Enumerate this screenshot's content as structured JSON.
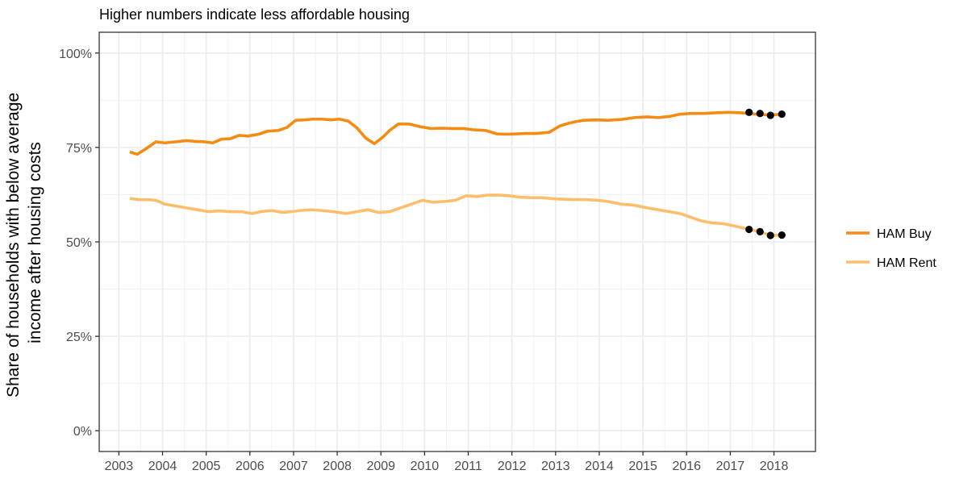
{
  "chart_data": {
    "type": "line",
    "title": "Higher numbers indicate less affordable housing",
    "ylabel_lines": [
      "Share of households with below average",
      "income after housing costs"
    ],
    "xlabel": "",
    "xlim": [
      2002.55,
      2018.95
    ],
    "ylim": [
      -0.055,
      1.055
    ],
    "x_ticks": [
      2003,
      2004,
      2005,
      2006,
      2007,
      2008,
      2009,
      2010,
      2011,
      2012,
      2013,
      2014,
      2015,
      2016,
      2017,
      2018
    ],
    "x_tick_labels": [
      "2003",
      "2004",
      "2005",
      "2006",
      "2007",
      "2008",
      "2009",
      "2010",
      "2011",
      "2012",
      "2013",
      "2014",
      "2015",
      "2016",
      "2017",
      "2018"
    ],
    "y_ticks": [
      0,
      0.25,
      0.5,
      0.75,
      1.0
    ],
    "y_tick_labels": [
      "0%",
      "25%",
      "50%",
      "75%",
      "100%"
    ],
    "grid": true,
    "legend_position": "right",
    "legend": [
      "HAM Buy",
      "HAM Rent"
    ],
    "series": [
      {
        "name": "HAM Buy",
        "color": "#f58b13",
        "x": [
          2003.25,
          2003.42,
          2003.6,
          2003.85,
          2004.05,
          2004.3,
          2004.55,
          2004.75,
          2004.95,
          2005.15,
          2005.35,
          2005.55,
          2005.75,
          2005.95,
          2006.2,
          2006.4,
          2006.65,
          2006.85,
          2007.05,
          2007.25,
          2007.45,
          2007.65,
          2007.85,
          2008.05,
          2008.25,
          2008.45,
          2008.65,
          2008.85,
          2009.05,
          2009.2,
          2009.4,
          2009.65,
          2009.9,
          2010.15,
          2010.4,
          2010.65,
          2010.9,
          2011.1,
          2011.4,
          2011.65,
          2011.9,
          2012.1,
          2012.3,
          2012.55,
          2012.85,
          2013.1,
          2013.3,
          2013.45,
          2013.65,
          2013.95,
          2014.2,
          2014.5,
          2014.8,
          2015.1,
          2015.35,
          2015.6,
          2015.85,
          2016.1,
          2016.4,
          2016.7,
          2016.95,
          2017.2,
          2017.43,
          2017.68,
          2017.92,
          2018.18
        ],
        "values": [
          0.738,
          0.732,
          0.745,
          0.765,
          0.762,
          0.765,
          0.768,
          0.766,
          0.765,
          0.762,
          0.772,
          0.773,
          0.782,
          0.78,
          0.785,
          0.793,
          0.795,
          0.803,
          0.822,
          0.823,
          0.825,
          0.825,
          0.823,
          0.825,
          0.82,
          0.802,
          0.775,
          0.76,
          0.778,
          0.795,
          0.812,
          0.812,
          0.805,
          0.8,
          0.801,
          0.8,
          0.8,
          0.797,
          0.795,
          0.786,
          0.785,
          0.786,
          0.787,
          0.787,
          0.79,
          0.807,
          0.814,
          0.818,
          0.822,
          0.823,
          0.822,
          0.824,
          0.829,
          0.831,
          0.829,
          0.832,
          0.838,
          0.84,
          0.84,
          0.842,
          0.843,
          0.842,
          0.84,
          0.837,
          0.836,
          0.838
        ]
      },
      {
        "name": "HAM Rent",
        "color": "#fdbe6b",
        "x": [
          2003.25,
          2003.45,
          2003.65,
          2003.85,
          2004.05,
          2004.3,
          2004.55,
          2004.8,
          2005.05,
          2005.3,
          2005.55,
          2005.8,
          2006.05,
          2006.25,
          2006.5,
          2006.75,
          2006.95,
          2007.15,
          2007.4,
          2007.65,
          2007.9,
          2008.2,
          2008.45,
          2008.7,
          2008.95,
          2009.2,
          2009.45,
          2009.7,
          2009.95,
          2010.2,
          2010.45,
          2010.7,
          2010.95,
          2011.2,
          2011.45,
          2011.7,
          2011.95,
          2012.2,
          2012.45,
          2012.7,
          2012.95,
          2013.2,
          2013.45,
          2013.7,
          2013.95,
          2014.2,
          2014.5,
          2014.8,
          2015.1,
          2015.35,
          2015.6,
          2015.85,
          2016.1,
          2016.35,
          2016.6,
          2016.85,
          2017.1,
          2017.43,
          2017.68,
          2017.92,
          2018.18
        ],
        "values": [
          0.615,
          0.612,
          0.612,
          0.61,
          0.6,
          0.595,
          0.59,
          0.585,
          0.58,
          0.582,
          0.58,
          0.58,
          0.575,
          0.58,
          0.583,
          0.578,
          0.58,
          0.583,
          0.585,
          0.583,
          0.58,
          0.575,
          0.58,
          0.585,
          0.578,
          0.58,
          0.59,
          0.6,
          0.61,
          0.605,
          0.607,
          0.61,
          0.622,
          0.62,
          0.624,
          0.624,
          0.622,
          0.618,
          0.617,
          0.617,
          0.614,
          0.613,
          0.612,
          0.612,
          0.61,
          0.607,
          0.6,
          0.597,
          0.59,
          0.585,
          0.58,
          0.575,
          0.565,
          0.555,
          0.55,
          0.548,
          0.542,
          0.533,
          0.527,
          0.517,
          0.518
        ]
      }
    ],
    "markers": {
      "color": "#000000",
      "points": [
        {
          "x": 2017.43,
          "y": 0.843
        },
        {
          "x": 2017.68,
          "y": 0.84
        },
        {
          "x": 2017.92,
          "y": 0.835
        },
        {
          "x": 2018.18,
          "y": 0.838
        },
        {
          "x": 2017.43,
          "y": 0.533
        },
        {
          "x": 2017.68,
          "y": 0.527
        },
        {
          "x": 2017.92,
          "y": 0.517
        },
        {
          "x": 2018.18,
          "y": 0.518
        }
      ]
    }
  }
}
